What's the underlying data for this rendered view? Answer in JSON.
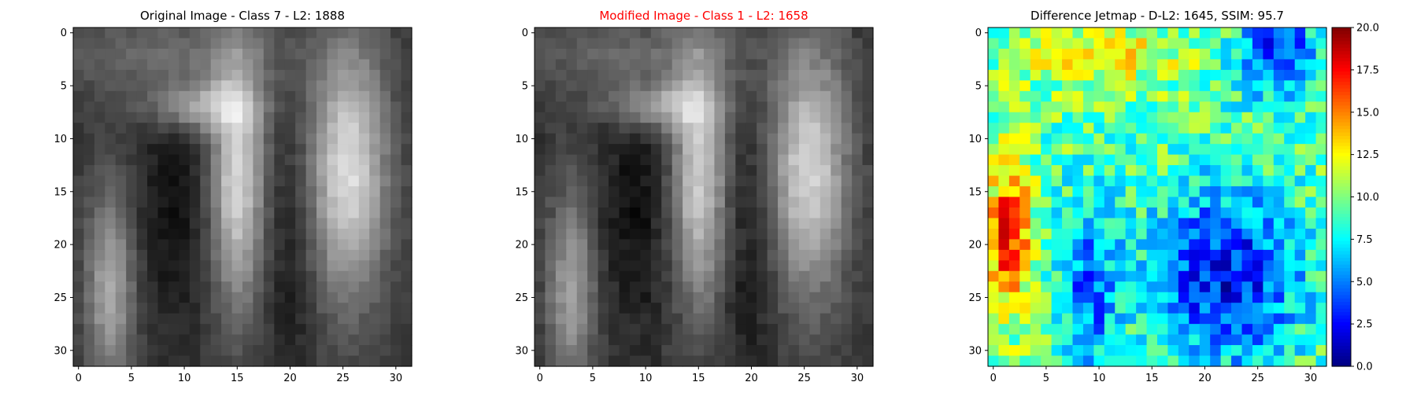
{
  "chart_data": [
    {
      "type": "heatmap",
      "title": "Original Image - Class 7 - L2: 1888",
      "colormap": "gray",
      "x_ticks": [
        0,
        5,
        10,
        15,
        20,
        25,
        30
      ],
      "y_ticks": [
        0,
        5,
        10,
        15,
        20,
        25,
        30
      ],
      "xlim": [
        -0.5,
        31.5
      ],
      "ylim": [
        31.5,
        -0.5
      ],
      "grid_size": [
        32,
        32
      ]
    },
    {
      "type": "heatmap",
      "title": "Modified Image - Class 1 - L2: 1658",
      "title_color": "#ff0000",
      "colormap": "gray",
      "x_ticks": [
        0,
        5,
        10,
        15,
        20,
        25,
        30
      ],
      "y_ticks": [
        0,
        5,
        10,
        15,
        20,
        25,
        30
      ],
      "xlim": [
        -0.5,
        31.5
      ],
      "ylim": [
        31.5,
        -0.5
      ],
      "grid_size": [
        32,
        32
      ]
    },
    {
      "type": "heatmap",
      "title": "Difference Jetmap - D-L2: 1645, SSIM: 95.7",
      "colormap": "jet",
      "x_ticks": [
        0,
        5,
        10,
        15,
        20,
        25,
        30
      ],
      "y_ticks": [
        0,
        5,
        10,
        15,
        20,
        25,
        30
      ],
      "xlim": [
        -0.5,
        31.5
      ],
      "ylim": [
        31.5,
        -0.5
      ],
      "grid_size": [
        32,
        32
      ],
      "colorbar": {
        "min": 0,
        "max": 20,
        "ticks": [
          "0.0",
          "2.5",
          "5.0",
          "7.5",
          "10.0",
          "12.5",
          "15.0",
          "17.5",
          "20.0"
        ]
      }
    }
  ]
}
